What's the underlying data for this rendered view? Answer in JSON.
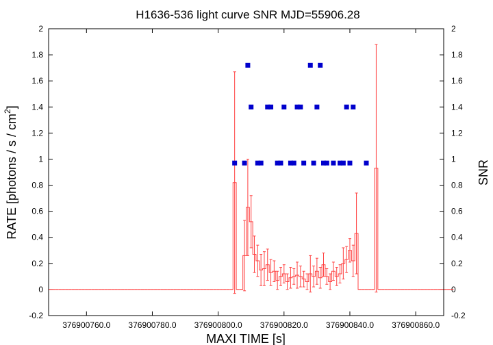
{
  "chart_data": {
    "type": "scatter",
    "title": "H1636-536 light curve  SNR MJD=55906.28",
    "xlabel": "MAXI TIME [s]",
    "ylabel": "RATE [photons / s / cm",
    "ylabel_sup": "2",
    "ylabel_end": "]",
    "y2label": "SNR",
    "xlim": [
      376900748.5,
      376900868.5
    ],
    "ylim": [
      -0.2,
      2
    ],
    "xticks": [
      "376900760.0",
      "376900780.0",
      "376900800.0",
      "376900820.0",
      "376900840.0",
      "376900860.0"
    ],
    "xtick_values": [
      376900760,
      376900780,
      376900800,
      376900820,
      376900840,
      376900860
    ],
    "yticks": [
      "-0.2",
      "0",
      "0.2",
      "0.4",
      "0.6",
      "0.8",
      "1",
      "1.2",
      "1.4",
      "1.6",
      "1.8",
      "2"
    ],
    "ytick_values": [
      -0.2,
      0,
      0.2,
      0.4,
      0.6,
      0.8,
      1,
      1.2,
      1.4,
      1.6,
      1.8,
      2
    ],
    "grid": false,
    "legend": "none",
    "colors": {
      "rate": "#ff4040",
      "snr": "#0000cc"
    },
    "series": [
      {
        "type": "step-errorbar",
        "x_start": 376900749,
        "x_step": 1,
        "values": [
          0,
          0,
          0,
          0,
          0,
          0,
          0,
          0,
          0,
          0,
          0,
          0,
          0,
          0,
          0,
          0,
          0,
          0,
          0,
          0,
          0,
          0,
          0,
          0,
          0,
          0,
          0,
          0,
          0,
          0,
          0,
          0,
          0,
          0,
          0,
          0,
          0,
          0,
          0,
          0,
          0,
          0,
          0,
          0,
          0,
          0,
          0,
          0,
          0,
          0,
          0,
          0,
          0,
          0,
          0,
          0,
          0.82,
          0,
          0,
          0.26,
          0.63,
          0.52,
          0.27,
          0.22,
          0.15,
          0.16,
          0.19,
          0.13,
          0.14,
          0.07,
          0.1,
          0.12,
          0.06,
          0.09,
          0.1,
          0.11,
          0.1,
          0.08,
          0.06,
          0.12,
          0.1,
          0.14,
          0.09,
          0.19,
          0.1,
          0.06,
          0.14,
          0.1,
          0.12,
          0.2,
          0.23,
          0.3,
          0.22,
          0.43,
          0,
          0,
          0,
          0,
          0,
          0.93,
          0,
          0,
          0,
          0,
          0,
          0,
          0,
          0,
          0,
          0,
          0,
          0,
          0,
          0,
          0,
          0,
          0,
          0,
          0,
          0,
          0,
          0,
          0
        ],
        "errors": [
          0,
          0,
          0,
          0,
          0,
          0,
          0,
          0,
          0,
          0,
          0,
          0,
          0,
          0,
          0,
          0,
          0,
          0,
          0,
          0,
          0,
          0,
          0,
          0,
          0,
          0,
          0,
          0,
          0,
          0,
          0,
          0,
          0,
          0,
          0,
          0,
          0,
          0,
          0,
          0,
          0,
          0,
          0,
          0,
          0,
          0,
          0,
          0,
          0,
          0,
          0,
          0,
          0,
          0,
          0,
          0,
          0.85,
          0,
          0,
          0.27,
          0.37,
          0.2,
          0.14,
          0.12,
          0.12,
          0.13,
          0.12,
          0.1,
          0.08,
          0.07,
          0.07,
          0.07,
          0.06,
          0.08,
          0.06,
          0.1,
          0.08,
          0.06,
          0.06,
          0.14,
          0.08,
          0.1,
          0.08,
          0.09,
          0.06,
          0.06,
          0.07,
          0.07,
          0.07,
          0.12,
          0.1,
          0.09,
          0.12,
          0.31,
          0,
          0,
          0,
          0,
          0,
          0.95,
          0,
          0,
          0,
          0,
          0,
          0,
          0,
          0,
          0,
          0,
          0,
          0,
          0,
          0,
          0,
          0,
          0,
          0,
          0,
          0,
          0,
          0,
          0
        ]
      },
      {
        "type": "points",
        "x": [
          376900805,
          376900808,
          376900809,
          376900810,
          376900812,
          376900813,
          376900815,
          376900816,
          376900818,
          376900819,
          376900820,
          376900822,
          376900823,
          376900824,
          376900825,
          376900826,
          376900828,
          376900829,
          376900830,
          376900831,
          376900832,
          376900833,
          376900835,
          376900837,
          376900838,
          376900839,
          376900840,
          376900841,
          376900845
        ],
        "y": [
          0.97,
          0.97,
          1.72,
          1.4,
          0.97,
          0.97,
          1.4,
          1.4,
          0.97,
          0.97,
          1.4,
          0.97,
          0.97,
          1.4,
          1.4,
          0.97,
          1.72,
          0.97,
          1.4,
          1.72,
          0.97,
          0.97,
          0.97,
          0.97,
          0.97,
          1.4,
          0.97,
          1.4,
          0.97
        ]
      }
    ]
  }
}
